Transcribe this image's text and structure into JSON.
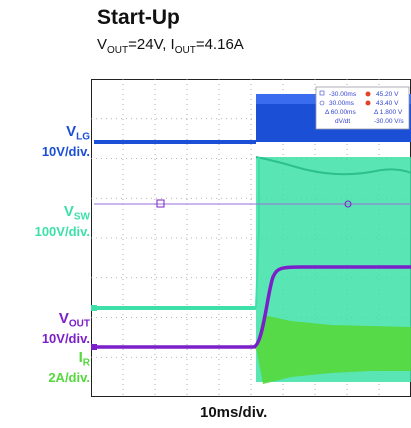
{
  "title": "Start-Up",
  "subtitle": {
    "v": "V",
    "v_sub": "OUT",
    "v_eq": "=24V, ",
    "i": "I",
    "i_sub": "OUT",
    "i_eq": "=4.16A"
  },
  "traces": [
    {
      "name": "VLG",
      "label": "V",
      "label_sub": "LG",
      "scale": "10V/div.",
      "color": "#1a4fd6"
    },
    {
      "name": "VSW",
      "label": "V",
      "label_sub": "SW",
      "scale": "100V/div.",
      "color": "#3de0a8"
    },
    {
      "name": "VOUT",
      "label": "V",
      "label_sub": "OUT",
      "scale": "10V/div.",
      "color": "#7a1fc9"
    },
    {
      "name": "IR",
      "label": "I",
      "label_sub": "R",
      "scale": "2A/div.",
      "color": "#55d83c"
    }
  ],
  "cursor_readout": {
    "row1": [
      "-30.00ms",
      "45.20 V"
    ],
    "row2": [
      "30.00ms",
      "43.40 V"
    ],
    "row3": [
      "Δ 60.00ms",
      "Δ 1.800 V"
    ],
    "row4": [
      "dV/dt",
      "-30.00 V/s"
    ]
  },
  "x_scale": "10ms/div.",
  "chart_data": {
    "type": "line",
    "title": "Start-Up",
    "subtitle": "VOUT=24V, IOUT=4.16A",
    "xlabel": "10ms/div.",
    "grid": true,
    "x_divisions": 10,
    "y_divisions": 8,
    "series": [
      {
        "name": "VLG",
        "scale": "10V/div."
      },
      {
        "name": "VSW",
        "scale": "100V/div."
      },
      {
        "name": "VOUT",
        "scale": "10V/div."
      },
      {
        "name": "IR",
        "scale": "2A/div."
      }
    ]
  }
}
